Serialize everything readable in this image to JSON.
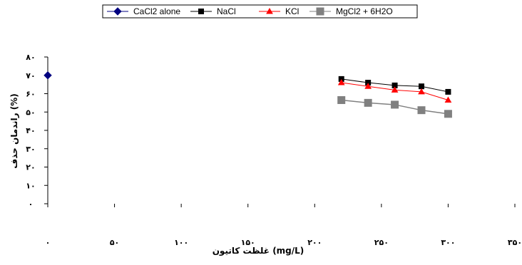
{
  "chart_data": {
    "type": "line",
    "title": "",
    "xlabel": "غلظت کاتیون (mg/L)",
    "ylabel": "راندمان حذف (%)",
    "xlim": [
      0,
      350
    ],
    "ylim": [
      0,
      80
    ],
    "x_ticks": [
      0,
      50,
      100,
      150,
      200,
      250,
      300,
      350
    ],
    "x_tick_labels": [
      "۰",
      "۵۰",
      "۱۰۰",
      "۱۵۰",
      "۲۰۰",
      "۲۵۰",
      "۳۰۰",
      "۳۵۰"
    ],
    "y_ticks": [
      0,
      10,
      20,
      30,
      40,
      50,
      60,
      70,
      80
    ],
    "y_tick_labels": [
      "۰",
      "۱۰",
      "۲۰",
      "۳۰",
      "۴۰",
      "۵۰",
      "۶۰",
      "۷۰",
      "۸۰"
    ],
    "grid": false,
    "legend_position": "top",
    "series": [
      {
        "name": "CaCl2 alone",
        "color": "#000080",
        "marker": "diamond",
        "x": [
          0
        ],
        "y": [
          70
        ]
      },
      {
        "name": "NaCl",
        "color": "#000000",
        "marker": "square-small",
        "x": [
          220,
          240,
          260,
          280,
          300
        ],
        "y": [
          68,
          66,
          64.5,
          64,
          61
        ]
      },
      {
        "name": "KCl",
        "color": "#ff0000",
        "marker": "triangle",
        "x": [
          220,
          240,
          260,
          280,
          300
        ],
        "y": [
          66,
          64,
          62,
          61,
          56.5
        ]
      },
      {
        "name": "MgCl2 + 6H2O",
        "color": "#808080",
        "marker": "square",
        "x": [
          220,
          240,
          260,
          280,
          300
        ],
        "y": [
          56.5,
          55,
          54,
          51,
          49
        ]
      }
    ]
  }
}
